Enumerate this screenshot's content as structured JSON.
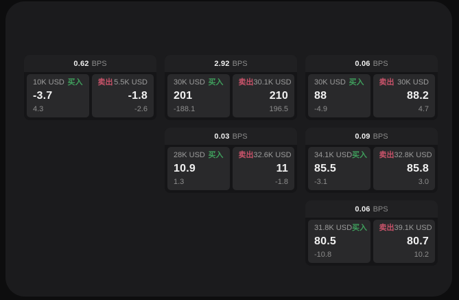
{
  "labels": {
    "bps_unit": "BPS",
    "buy": "买入",
    "sell": "卖出"
  },
  "colors": {
    "page_bg": "#0d0d0e",
    "panel_bg": "#1b1b1d",
    "card_bg": "#151517",
    "header_bg": "#202022",
    "tile_bg": "#29292b",
    "buy_accent": "#3f9e5c",
    "sell_accent": "#c8536a",
    "value_text": "#f1f1f1",
    "muted_text": "#8d8d8d"
  },
  "cards": [
    {
      "col": 1,
      "row": 1,
      "bps": "0.62",
      "buy": {
        "size": "10K USD",
        "price": "-3.7",
        "delta": "4.3"
      },
      "sell": {
        "size": "5.5K USD",
        "price": "-1.8",
        "delta": "-2.6"
      }
    },
    {
      "col": 2,
      "row": 1,
      "bps": "2.92",
      "buy": {
        "size": "30K USD",
        "price": "201",
        "delta": "-188.1"
      },
      "sell": {
        "size": "30.1K USD",
        "price": "210",
        "delta": "196.5"
      }
    },
    {
      "col": 3,
      "row": 1,
      "bps": "0.06",
      "buy": {
        "size": "30K USD",
        "price": "88",
        "delta": "-4.9"
      },
      "sell": {
        "size": "30K USD",
        "price": "88.2",
        "delta": "4.7"
      }
    },
    {
      "col": 2,
      "row": 2,
      "bps": "0.03",
      "buy": {
        "size": "28K USD",
        "price": "10.9",
        "delta": "1.3"
      },
      "sell": {
        "size": "32.6K USD",
        "price": "11",
        "delta": "-1.8"
      }
    },
    {
      "col": 3,
      "row": 2,
      "bps": "0.09",
      "buy": {
        "size": "34.1K USD",
        "price": "85.5",
        "delta": "-3.1"
      },
      "sell": {
        "size": "32.8K USD",
        "price": "85.8",
        "delta": "3.0"
      }
    },
    {
      "col": 3,
      "row": 3,
      "bps": "0.06",
      "buy": {
        "size": "31.8K USD",
        "price": "80.5",
        "delta": "-10.8"
      },
      "sell": {
        "size": "39.1K USD",
        "price": "80.7",
        "delta": "10.2"
      }
    }
  ]
}
